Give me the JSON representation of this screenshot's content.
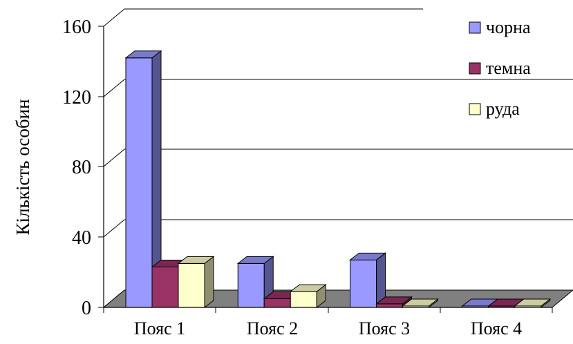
{
  "chart_data": {
    "type": "bar",
    "categories": [
      "Пояс 1",
      "Пояс 2",
      "Пояс 3",
      "Пояс 4"
    ],
    "series": [
      {
        "name": "чорна",
        "values": [
          142,
          25,
          27,
          0.5
        ]
      },
      {
        "name": "темна",
        "values": [
          23,
          5,
          2,
          0.5
        ]
      },
      {
        "name": "руда",
        "values": [
          25,
          9,
          0.5,
          0.5
        ]
      }
    ],
    "ylabel": "Кількість особин",
    "ylim": [
      0,
      160
    ],
    "yticks": [
      "0",
      "40",
      "80",
      "120",
      "160"
    ],
    "grid": true,
    "legend_position": "top-right",
    "colors": {
      "series": [
        "#9999ff",
        "#993366",
        "#ffffcc"
      ],
      "series_side": [
        "#55558f",
        "#551c38",
        "#8f8f72"
      ],
      "series_top": [
        "#7a7acc",
        "#7a2852",
        "#cccca3"
      ],
      "floor": "#808080"
    }
  }
}
